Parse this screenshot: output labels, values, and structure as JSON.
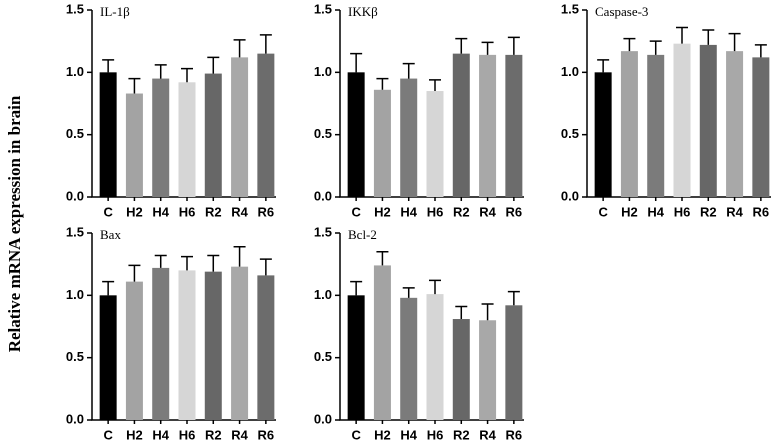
{
  "ylabel": "Relative mRNA expression in brain",
  "chart_data": [
    {
      "type": "bar",
      "title": "IL-1β",
      "categories": [
        "C",
        "H2",
        "H4",
        "H6",
        "R2",
        "R4",
        "R6"
      ],
      "values": [
        1.0,
        0.83,
        0.95,
        0.92,
        0.99,
        1.12,
        1.15
      ],
      "errors": [
        0.1,
        0.12,
        0.11,
        0.11,
        0.13,
        0.14,
        0.15
      ],
      "colors": [
        "#000000",
        "#a3a3a3",
        "#7b7b7b",
        "#d6d6d6",
        "#676767",
        "#a8a8a8",
        "#6c6c6c"
      ],
      "ylim": [
        0,
        1.5
      ],
      "yticks": [
        {
          "value": 0,
          "label": "0.0"
        },
        {
          "value": 0.5,
          "label": "0.5"
        },
        {
          "value": 1,
          "label": "1.0"
        },
        {
          "value": 1.5,
          "label": "1.5"
        }
      ]
    },
    {
      "type": "bar",
      "title": "IKKβ",
      "categories": [
        "C",
        "H2",
        "H4",
        "H6",
        "R2",
        "R4",
        "R6"
      ],
      "values": [
        1.0,
        0.86,
        0.95,
        0.85,
        1.15,
        1.14,
        1.14
      ],
      "errors": [
        0.15,
        0.09,
        0.12,
        0.09,
        0.12,
        0.1,
        0.14
      ],
      "colors": [
        "#000000",
        "#a3a3a3",
        "#7b7b7b",
        "#d6d6d6",
        "#676767",
        "#a8a8a8",
        "#6c6c6c"
      ],
      "ylim": [
        0,
        1.5
      ],
      "yticks": [
        {
          "value": 0,
          "label": "0.0"
        },
        {
          "value": 0.5,
          "label": "0.5"
        },
        {
          "value": 1,
          "label": "1.0"
        },
        {
          "value": 1.5,
          "label": "1.5"
        }
      ]
    },
    {
      "type": "bar",
      "title": "Caspase-3",
      "categories": [
        "C",
        "H2",
        "H4",
        "H6",
        "R2",
        "R4",
        "R6"
      ],
      "values": [
        1.0,
        1.17,
        1.14,
        1.23,
        1.22,
        1.17,
        1.12
      ],
      "errors": [
        0.1,
        0.1,
        0.11,
        0.13,
        0.12,
        0.14,
        0.1
      ],
      "colors": [
        "#000000",
        "#a3a3a3",
        "#7b7b7b",
        "#d6d6d6",
        "#676767",
        "#a8a8a8",
        "#6c6c6c"
      ],
      "ylim": [
        0,
        1.5
      ],
      "yticks": [
        {
          "value": 0,
          "label": "0.0"
        },
        {
          "value": 0.5,
          "label": "0.5"
        },
        {
          "value": 1,
          "label": "1.0"
        },
        {
          "value": 1.5,
          "label": "1.5"
        }
      ]
    },
    {
      "type": "bar",
      "title": "Bax",
      "categories": [
        "C",
        "H2",
        "H4",
        "H6",
        "R2",
        "R4",
        "R6"
      ],
      "values": [
        1.0,
        1.11,
        1.22,
        1.2,
        1.19,
        1.23,
        1.16
      ],
      "errors": [
        0.11,
        0.13,
        0.1,
        0.11,
        0.13,
        0.16,
        0.13
      ],
      "colors": [
        "#000000",
        "#a3a3a3",
        "#7b7b7b",
        "#d6d6d6",
        "#676767",
        "#a8a8a8",
        "#6c6c6c"
      ],
      "ylim": [
        0,
        1.5
      ],
      "yticks": [
        {
          "value": 0,
          "label": "0.0"
        },
        {
          "value": 0.5,
          "label": "0.5"
        },
        {
          "value": 1,
          "label": "1.0"
        },
        {
          "value": 1.5,
          "label": "1.5"
        }
      ]
    },
    {
      "type": "bar",
      "title": "Bcl-2",
      "categories": [
        "C",
        "H2",
        "H4",
        "H6",
        "R2",
        "R4",
        "R6"
      ],
      "values": [
        1.0,
        1.24,
        0.98,
        1.01,
        0.81,
        0.8,
        0.92
      ],
      "errors": [
        0.11,
        0.11,
        0.08,
        0.11,
        0.1,
        0.13,
        0.11
      ],
      "colors": [
        "#000000",
        "#a3a3a3",
        "#7b7b7b",
        "#d6d6d6",
        "#676767",
        "#a8a8a8",
        "#6c6c6c"
      ],
      "ylim": [
        0,
        1.5
      ],
      "yticks": [
        {
          "value": 0,
          "label": "0.0"
        },
        {
          "value": 0.5,
          "label": "0.5"
        },
        {
          "value": 1,
          "label": "1.0"
        },
        {
          "value": 1.5,
          "label": "1.5"
        }
      ]
    }
  ]
}
